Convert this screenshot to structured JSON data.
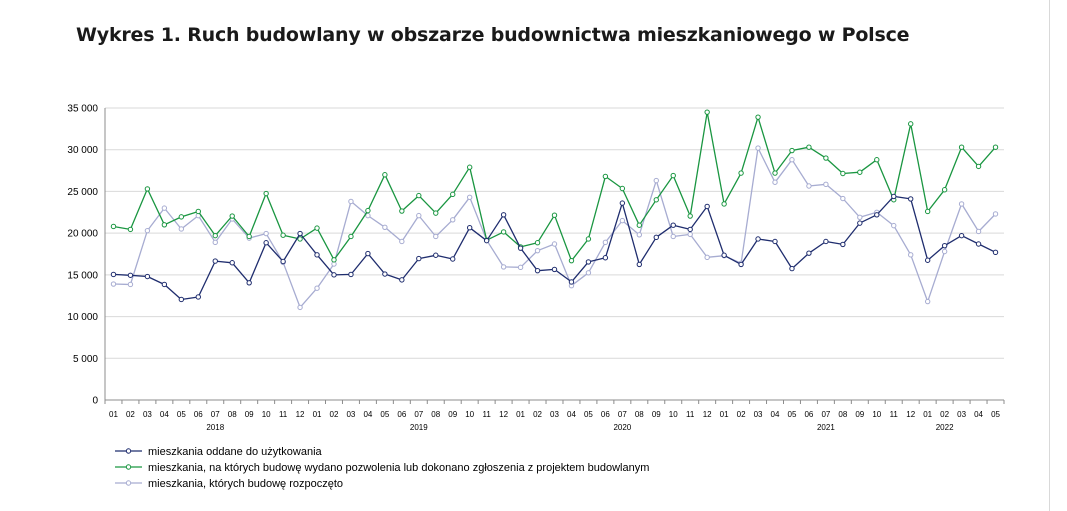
{
  "title": "Wykres 1. Ruch budowlany w obszarze budownictwa mieszkaniowego w Polsce",
  "chart_data": {
    "type": "line",
    "ylim": [
      0,
      35000
    ],
    "yticks": [
      0,
      5000,
      10000,
      15000,
      20000,
      25000,
      30000,
      35000
    ],
    "ytick_labels": [
      "0",
      "5 000",
      "10 000",
      "15 000",
      "20 000",
      "25 000",
      "30 000",
      "35 000"
    ],
    "grid": true,
    "months": [
      "01",
      "02",
      "03",
      "04",
      "05",
      "06",
      "07",
      "08",
      "09",
      "10",
      "11",
      "12",
      "01",
      "02",
      "03",
      "04",
      "05",
      "06",
      "07",
      "08",
      "09",
      "10",
      "11",
      "12",
      "01",
      "02",
      "03",
      "04",
      "05",
      "06",
      "07",
      "08",
      "09",
      "10",
      "11",
      "12",
      "01",
      "02",
      "03",
      "04",
      "05",
      "06",
      "07",
      "08",
      "09",
      "10",
      "11",
      "12",
      "01",
      "02",
      "03",
      "04",
      "05"
    ],
    "years": [
      {
        "label": "2018",
        "index": 6
      },
      {
        "label": "2019",
        "index": 18
      },
      {
        "label": "2020",
        "index": 30
      },
      {
        "label": "2021",
        "index": 42
      },
      {
        "label": "2022",
        "index": 49
      }
    ],
    "legend_position": "bottom-left",
    "series": [
      {
        "name": "mieszkania oddane do użytkowania",
        "color": "#1f2d6e",
        "values": [
          15050,
          14950,
          14800,
          13850,
          12050,
          12350,
          16650,
          16450,
          14050,
          18850,
          16600,
          19950,
          17400,
          15000,
          15050,
          17550,
          15100,
          14400,
          16950,
          17350,
          16900,
          20650,
          19100,
          22200,
          18200,
          15500,
          15650,
          14150,
          16550,
          17050,
          23600,
          16250,
          19500,
          20950,
          20450,
          23200,
          17350,
          16250,
          19300,
          19000,
          15750,
          17600,
          19000,
          18650,
          21200,
          22200,
          24400,
          24100,
          16750,
          18500,
          19700,
          18700,
          17700
        ]
      },
      {
        "name": "mieszkania, na których budowę wydano pozwolenia lub dokonano zgłoszenia z projektem budowlanym",
        "color": "#1a9641",
        "values": [
          20800,
          20450,
          25300,
          21000,
          21950,
          22600,
          19700,
          22050,
          19600,
          24750,
          19750,
          19300,
          20600,
          16800,
          19600,
          22700,
          27000,
          22650,
          24500,
          22400,
          24650,
          27900,
          19150,
          20150,
          18350,
          18850,
          22150,
          16700,
          19300,
          26800,
          25350,
          20950,
          24000,
          26900,
          22050,
          34500,
          23500,
          27200,
          33900,
          27200,
          29900,
          30300,
          29000,
          27150,
          27300,
          28800,
          24000,
          33100,
          22600,
          25200,
          30300,
          28000,
          30300
        ]
      },
      {
        "name": "mieszkania, których budowę rozpoczęto",
        "color": "#a7acd1",
        "values": [
          13900,
          13850,
          20300,
          23000,
          20500,
          22100,
          18900,
          21700,
          19400,
          19950,
          16500,
          11100,
          13400,
          16300,
          23800,
          22100,
          20700,
          19000,
          22100,
          19600,
          21600,
          24300,
          19150,
          15950,
          15900,
          17900,
          18700,
          13700,
          15250,
          18900,
          21500,
          19800,
          26300,
          19600,
          19850,
          17100,
          17300,
          16400,
          30200,
          26100,
          28800,
          25650,
          25850,
          24150,
          21900,
          22500,
          20900,
          17400,
          11800,
          17800,
          23500,
          20200,
          22300
        ]
      }
    ]
  }
}
